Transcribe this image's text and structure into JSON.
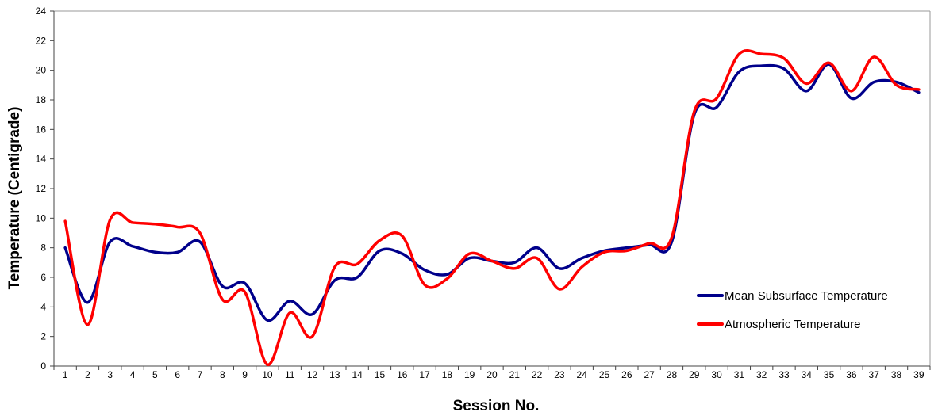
{
  "chart_data": {
    "type": "line",
    "title": "",
    "xlabel": "Session No.",
    "ylabel": "Temperature (Centigrade)",
    "ylim": [
      0,
      24
    ],
    "yticks": [
      0,
      2,
      4,
      6,
      8,
      10,
      12,
      14,
      16,
      18,
      20,
      22,
      24
    ],
    "categories": [
      "1",
      "2",
      "3",
      "4",
      "5",
      "6",
      "7",
      "8",
      "9",
      "10",
      "11",
      "12",
      "13",
      "14",
      "15",
      "16",
      "17",
      "18",
      "19",
      "20",
      "21",
      "22",
      "23",
      "24",
      "25",
      "26",
      "27",
      "28",
      "29",
      "30",
      "31",
      "32",
      "33",
      "34",
      "35",
      "36",
      "37",
      "38",
      "39"
    ],
    "grid": false,
    "legend_position": "bottom-right",
    "series": [
      {
        "name": "Mean Subsurface Temperature",
        "color": "#00008B",
        "values": [
          8.0,
          4.3,
          8.4,
          8.1,
          7.7,
          7.7,
          8.4,
          5.4,
          5.6,
          3.1,
          4.4,
          3.5,
          5.8,
          6.0,
          7.8,
          7.6,
          6.5,
          6.2,
          7.3,
          7.1,
          7.0,
          8.0,
          6.6,
          7.3,
          7.8,
          8.0,
          8.2,
          8.4,
          17.0,
          17.5,
          19.9,
          20.3,
          20.1,
          18.6,
          20.4,
          18.1,
          19.2,
          19.2,
          18.5
        ]
      },
      {
        "name": "Atmospheric Temperature",
        "color": "#FF0000",
        "values": [
          9.8,
          2.8,
          9.9,
          9.7,
          9.6,
          9.4,
          9.0,
          4.5,
          5.0,
          0.1,
          3.6,
          2.0,
          6.7,
          6.9,
          8.5,
          8.8,
          5.5,
          5.9,
          7.6,
          7.1,
          6.6,
          7.3,
          5.2,
          6.7,
          7.7,
          7.8,
          8.3,
          8.7,
          17.2,
          18.1,
          21.1,
          21.1,
          20.8,
          19.1,
          20.5,
          18.6,
          20.9,
          19.0,
          18.7
        ]
      }
    ]
  }
}
